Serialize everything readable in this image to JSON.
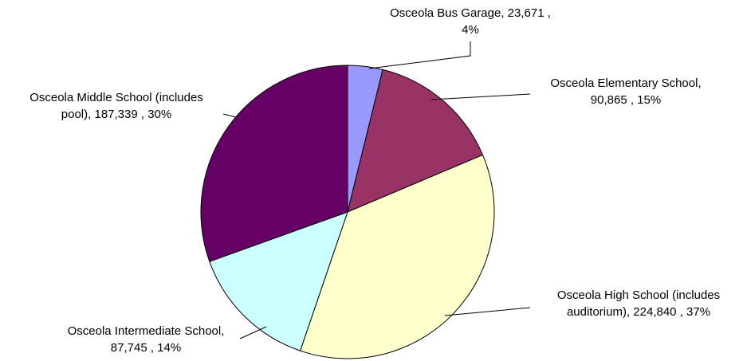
{
  "chart_data": {
    "type": "pie",
    "start_angle_deg": 0,
    "direction": "clockwise",
    "slices": [
      {
        "name": "Osceola Bus Garage",
        "value": 23671,
        "percent": "4%",
        "label_lines": [
          "Osceola Bus Garage,  23,671 ,",
          "4%"
        ],
        "color": "#9999ff"
      },
      {
        "name": "Osceola Elementary School",
        "value": 90865,
        "percent": "15%",
        "label_lines": [
          "Osceola Elementary School,",
          "90,865 , 15%"
        ],
        "color": "#993366"
      },
      {
        "name": "Osceola High School (includes auditorium)",
        "value": 224840,
        "percent": "37%",
        "label_lines": [
          "Osceola High School (includes",
          "auditorium),  224,840 , 37%"
        ],
        "color": "#ffffcc"
      },
      {
        "name": "Osceola Intermediate School",
        "value": 87745,
        "percent": "14%",
        "label_lines": [
          "Osceola Intermediate School,",
          "87,745 , 14%"
        ],
        "color": "#ccffff"
      },
      {
        "name": "Osceola Middle School (includes pool)",
        "value": 187339,
        "percent": "30%",
        "label_lines": [
          "Osceola Middle School (includes",
          "pool),  187,339 , 30%"
        ],
        "color": "#660066"
      }
    ]
  }
}
